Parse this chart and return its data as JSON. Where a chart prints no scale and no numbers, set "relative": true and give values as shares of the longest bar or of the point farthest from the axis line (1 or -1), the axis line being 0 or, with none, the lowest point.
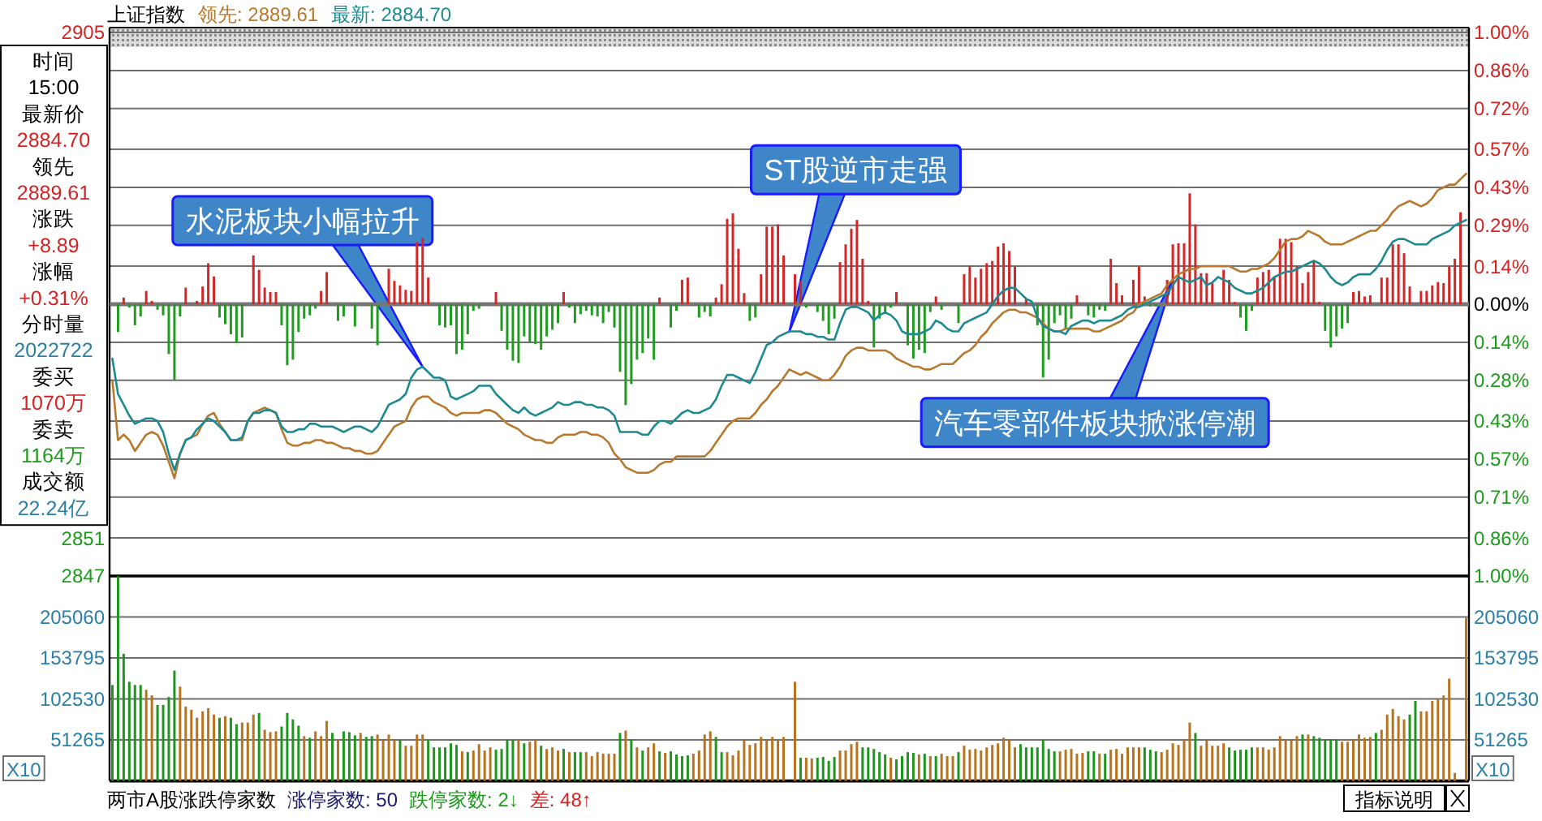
{
  "chart_data": [
    {
      "type": "line",
      "title": "上证指数",
      "grid": "y",
      "categories": [
        null,
        null,
        null,
        null,
        null,
        null,
        null,
        null,
        null,
        null,
        null,
        null,
        null,
        null,
        null,
        null,
        null,
        null,
        null,
        null,
        null,
        null,
        null,
        null,
        null,
        null,
        null,
        null,
        null,
        null,
        null,
        null,
        null,
        null,
        null,
        null,
        null,
        null,
        null,
        null,
        null,
        null,
        null,
        null,
        null,
        null,
        null,
        null,
        null,
        null,
        null,
        null,
        null,
        null,
        null,
        null,
        null,
        null,
        null,
        null,
        null,
        null,
        null,
        null,
        null,
        null,
        null,
        null,
        null,
        null,
        null,
        null,
        null,
        null,
        null,
        null,
        null,
        null,
        null,
        null,
        null,
        null,
        null,
        null,
        null,
        null,
        null,
        null,
        null,
        null,
        null,
        null,
        null,
        null,
        null,
        null,
        null,
        null,
        null,
        null,
        null,
        null,
        null,
        null,
        null,
        null,
        null,
        null,
        null,
        null,
        null,
        null,
        null,
        null,
        null,
        null,
        null,
        null,
        null,
        null,
        null,
        null,
        null,
        null,
        null,
        null,
        null,
        null,
        null,
        null,
        null,
        null,
        null,
        null,
        null,
        null,
        null,
        null,
        null,
        null,
        null,
        null,
        null,
        null,
        null,
        null,
        null,
        null,
        null,
        null,
        null,
        null,
        null,
        null,
        null,
        null,
        null,
        null,
        null,
        null,
        null,
        null,
        null,
        null,
        null,
        null,
        null,
        null,
        null,
        null,
        null,
        null,
        null,
        null,
        null,
        null,
        null,
        null,
        null,
        null,
        null,
        null,
        null,
        null,
        null,
        null,
        null,
        null,
        null,
        null,
        null,
        null,
        null,
        null,
        null,
        null,
        null,
        null,
        null,
        null,
        null,
        null,
        null,
        null,
        null,
        null,
        null,
        null,
        null,
        null,
        null,
        null,
        null,
        null,
        null,
        null,
        null,
        null,
        null,
        null,
        null,
        null,
        null,
        null,
        null,
        null,
        null,
        null,
        null,
        null,
        null,
        null,
        null,
        null,
        null,
        null,
        null,
        null,
        null,
        null,
        null
      ],
      "ylim": [
        -1,
        1
      ],
      "yticks": [
        {
          "value": 1,
          "label": "1.00%"
        },
        {
          "value": 0.86,
          "label": "0.86%"
        },
        {
          "value": 0.72,
          "label": "0.72%"
        },
        {
          "value": 0.57,
          "label": "0.57%"
        },
        {
          "value": 0.43,
          "label": "0.43%"
        },
        {
          "value": 0.29,
          "label": "0.29%"
        },
        {
          "value": 0.14,
          "label": "0.14%"
        },
        {
          "value": 0,
          "label": "0.00%"
        },
        {
          "value": -0.14,
          "label": "0.14%"
        },
        {
          "value": -0.28,
          "label": "0.28%"
        },
        {
          "value": -0.43,
          "label": "0.43%"
        },
        {
          "value": -0.57,
          "label": "0.57%"
        },
        {
          "value": -0.71,
          "label": "0.71%"
        },
        {
          "value": -0.86,
          "label": "0.86%"
        },
        {
          "value": -1,
          "label": "1.00%"
        }
      ],
      "y2lim": [
        2847,
        2905
      ],
      "y2ticks": [
        2905,
        2851,
        2847
      ],
      "series": [
        {
          "name": "领先: 2889.61",
          "color": "#b8792e",
          "values": [
            -0.28,
            -0.5,
            -0.48,
            -0.5,
            -0.54,
            -0.51,
            -0.48,
            -0.47,
            -0.48,
            -0.52,
            -0.58,
            -0.64,
            -0.55,
            -0.5,
            -0.49,
            -0.48,
            -0.44,
            -0.41,
            -0.4,
            -0.44,
            -0.47,
            -0.5,
            -0.5,
            -0.5,
            -0.43,
            -0.4,
            -0.39,
            -0.38,
            -0.39,
            -0.4,
            -0.46,
            -0.51,
            -0.52,
            -0.52,
            -0.51,
            -0.51,
            -0.5,
            -0.5,
            -0.51,
            -0.51,
            -0.52,
            -0.53,
            -0.53,
            -0.54,
            -0.54,
            -0.55,
            -0.55,
            -0.54,
            -0.51,
            -0.48,
            -0.45,
            -0.44,
            -0.43,
            -0.38,
            -0.35,
            -0.34,
            -0.34,
            -0.36,
            -0.37,
            -0.38,
            -0.4,
            -0.41,
            -0.4,
            -0.4,
            -0.4,
            -0.4,
            -0.39,
            -0.39,
            -0.4,
            -0.42,
            -0.44,
            -0.45,
            -0.46,
            -0.48,
            -0.49,
            -0.5,
            -0.5,
            -0.51,
            -0.51,
            -0.49,
            -0.48,
            -0.48,
            -0.48,
            -0.47,
            -0.47,
            -0.48,
            -0.48,
            -0.49,
            -0.51,
            -0.55,
            -0.57,
            -0.6,
            -0.61,
            -0.62,
            -0.62,
            -0.62,
            -0.61,
            -0.59,
            -0.58,
            -0.58,
            -0.56,
            -0.56,
            -0.56,
            -0.56,
            -0.56,
            -0.56,
            -0.54,
            -0.51,
            -0.48,
            -0.45,
            -0.43,
            -0.42,
            -0.42,
            -0.42,
            -0.4,
            -0.37,
            -0.35,
            -0.32,
            -0.3,
            -0.27,
            -0.24,
            -0.25,
            -0.26,
            -0.25,
            -0.26,
            -0.27,
            -0.28,
            -0.28,
            -0.26,
            -0.23,
            -0.19,
            -0.17,
            -0.16,
            -0.16,
            -0.17,
            -0.17,
            -0.17,
            -0.17,
            -0.18,
            -0.2,
            -0.21,
            -0.22,
            -0.23,
            -0.23,
            -0.24,
            -0.24,
            -0.23,
            -0.22,
            -0.22,
            -0.22,
            -0.2,
            -0.18,
            -0.17,
            -0.15,
            -0.12,
            -0.1,
            -0.07,
            -0.05,
            -0.03,
            -0.02,
            -0.02,
            -0.03,
            -0.03,
            -0.04,
            -0.05,
            -0.07,
            -0.09,
            -0.1,
            -0.1,
            -0.09,
            -0.09,
            -0.09,
            -0.09,
            -0.09,
            -0.1,
            -0.1,
            -0.09,
            -0.08,
            -0.07,
            -0.06,
            -0.04,
            -0.03,
            0.0,
            0.01,
            0.02,
            0.03,
            0.04,
            0.07,
            0.09,
            0.11,
            0.12,
            0.13,
            0.13,
            0.14,
            0.14,
            0.14,
            0.14,
            0.14,
            0.14,
            0.13,
            0.12,
            0.12,
            0.13,
            0.13,
            0.14,
            0.15,
            0.17,
            0.2,
            0.23,
            0.24,
            0.24,
            0.25,
            0.27,
            0.26,
            0.25,
            0.23,
            0.22,
            0.22,
            0.22,
            0.23,
            0.24,
            0.25,
            0.26,
            0.27,
            0.27,
            0.29,
            0.31,
            0.34,
            0.36,
            0.37,
            0.38,
            0.37,
            0.36,
            0.37,
            0.39,
            0.42,
            0.43,
            0.44,
            0.44,
            0.46,
            0.48
          ]
        },
        {
          "name": "最新: 2884.70",
          "color": "#1d8a92",
          "values": [
            -0.2,
            -0.33,
            -0.37,
            -0.41,
            -0.44,
            -0.43,
            -0.42,
            -0.42,
            -0.43,
            -0.47,
            -0.55,
            -0.61,
            -0.55,
            -0.5,
            -0.49,
            -0.46,
            -0.44,
            -0.42,
            -0.43,
            -0.45,
            -0.47,
            -0.5,
            -0.5,
            -0.49,
            -0.43,
            -0.4,
            -0.4,
            -0.39,
            -0.39,
            -0.4,
            -0.45,
            -0.47,
            -0.47,
            -0.46,
            -0.46,
            -0.44,
            -0.44,
            -0.45,
            -0.45,
            -0.45,
            -0.46,
            -0.47,
            -0.46,
            -0.45,
            -0.45,
            -0.46,
            -0.47,
            -0.45,
            -0.41,
            -0.37,
            -0.36,
            -0.35,
            -0.33,
            -0.27,
            -0.24,
            -0.23,
            -0.25,
            -0.27,
            -0.27,
            -0.28,
            -0.34,
            -0.35,
            -0.34,
            -0.33,
            -0.32,
            -0.3,
            -0.3,
            -0.3,
            -0.33,
            -0.35,
            -0.37,
            -0.39,
            -0.4,
            -0.38,
            -0.4,
            -0.41,
            -0.4,
            -0.39,
            -0.38,
            -0.36,
            -0.37,
            -0.37,
            -0.36,
            -0.36,
            -0.37,
            -0.37,
            -0.38,
            -0.38,
            -0.39,
            -0.41,
            -0.47,
            -0.47,
            -0.47,
            -0.47,
            -0.48,
            -0.48,
            -0.45,
            -0.43,
            -0.43,
            -0.44,
            -0.42,
            -0.4,
            -0.39,
            -0.4,
            -0.4,
            -0.39,
            -0.38,
            -0.35,
            -0.3,
            -0.26,
            -0.26,
            -0.27,
            -0.28,
            -0.29,
            -0.25,
            -0.2,
            -0.15,
            -0.14,
            -0.12,
            -0.11,
            -0.1,
            -0.1,
            -0.1,
            -0.11,
            -0.11,
            -0.12,
            -0.12,
            -0.13,
            -0.13,
            -0.07,
            -0.02,
            -0.01,
            -0.01,
            -0.02,
            -0.03,
            -0.06,
            -0.04,
            -0.03,
            -0.04,
            -0.06,
            -0.1,
            -0.11,
            -0.11,
            -0.11,
            -0.1,
            -0.09,
            -0.06,
            -0.07,
            -0.09,
            -0.1,
            -0.1,
            -0.07,
            -0.06,
            -0.05,
            -0.04,
            -0.03,
            0.0,
            0.03,
            0.05,
            0.06,
            0.06,
            0.04,
            0.02,
            0.01,
            -0.05,
            -0.08,
            -0.09,
            -0.1,
            -0.1,
            -0.11,
            -0.08,
            -0.07,
            -0.06,
            -0.06,
            -0.07,
            -0.06,
            -0.06,
            -0.06,
            -0.05,
            -0.04,
            -0.02,
            -0.01,
            -0.01,
            0.0,
            0.01,
            0.02,
            0.03,
            0.04,
            0.07,
            0.1,
            0.09,
            0.08,
            0.09,
            0.1,
            0.07,
            0.08,
            0.1,
            0.09,
            0.08,
            0.06,
            0.05,
            0.04,
            0.04,
            0.05,
            0.06,
            0.08,
            0.1,
            0.11,
            0.12,
            0.12,
            0.13,
            0.14,
            0.15,
            0.16,
            0.15,
            0.13,
            0.1,
            0.08,
            0.07,
            0.08,
            0.1,
            0.11,
            0.11,
            0.11,
            0.13,
            0.16,
            0.2,
            0.23,
            0.24,
            0.24,
            0.23,
            0.22,
            0.22,
            0.22,
            0.24,
            0.25,
            0.26,
            0.27,
            0.29,
            0.3,
            0.31
          ]
        }
      ],
      "annotations": [
        "水泥板块小幅拉升",
        "ST股逆市走强",
        "汽车零部件板块掀涨停潮",
        "时间",
        "15:00",
        "最新价",
        "2884.70",
        "领先",
        "2889.61",
        "涨跌",
        "+8.89",
        "涨幅",
        "+0.31%",
        "分时量",
        "2022722",
        "委买",
        "1070万",
        "委卖",
        "1164万",
        "成交额",
        "22.24亿"
      ]
    },
    {
      "type": "bar",
      "relative": true,
      "categories": [
        null,
        null,
        null,
        null,
        null,
        null,
        null,
        null,
        null,
        null,
        null,
        null,
        null,
        null,
        null,
        null,
        null,
        null,
        null,
        null,
        null,
        null,
        null,
        null,
        null,
        null,
        null,
        null,
        null,
        null,
        null,
        null,
        null,
        null,
        null,
        null,
        null,
        null,
        null,
        null,
        null,
        null,
        null,
        null,
        null,
        null,
        null,
        null,
        null,
        null,
        null,
        null,
        null,
        null,
        null,
        null,
        null,
        null,
        null,
        null,
        null,
        null,
        null,
        null,
        null,
        null,
        null,
        null,
        null,
        null,
        null,
        null,
        null,
        null,
        null,
        null,
        null,
        null,
        null,
        null,
        null,
        null,
        null,
        null,
        null,
        null,
        null,
        null,
        null,
        null,
        null,
        null,
        null,
        null,
        null,
        null,
        null,
        null,
        null,
        null,
        null,
        null,
        null,
        null,
        null,
        null,
        null,
        null,
        null,
        null,
        null,
        null,
        null,
        null,
        null,
        null,
        null,
        null,
        null,
        null,
        null,
        null,
        null,
        null,
        null,
        null,
        null,
        null,
        null,
        null,
        null,
        null,
        null,
        null,
        null,
        null,
        null,
        null,
        null,
        null,
        null,
        null,
        null,
        null,
        null,
        null,
        null,
        null,
        null,
        null,
        null,
        null,
        null,
        null,
        null,
        null,
        null,
        null,
        null,
        null,
        null,
        null,
        null,
        null,
        null,
        null,
        null,
        null,
        null,
        null,
        null,
        null,
        null,
        null,
        null,
        null,
        null,
        null,
        null,
        null,
        null,
        null,
        null,
        null,
        null,
        null,
        null,
        null,
        null,
        null,
        null,
        null,
        null,
        null,
        null,
        null,
        null,
        null,
        null,
        null,
        null,
        null,
        null,
        null,
        null,
        null,
        null,
        null,
        null,
        null,
        null,
        null,
        null,
        null,
        null,
        null,
        null,
        null,
        null,
        null,
        null,
        null,
        null,
        null,
        null,
        null,
        null,
        null,
        null,
        null,
        null,
        null,
        null,
        null,
        null,
        null,
        null,
        null,
        null,
        null,
        null
      ],
      "series": [
        {
          "color": "#d42626",
          "values": [
            null,
            null,
            0.06,
            null,
            null,
            null,
            0.12,
            0.03,
            null,
            null,
            null,
            null,
            null,
            0.15,
            null,
            0.03,
            0.16,
            0.37,
            0.25,
            null,
            null,
            null,
            null,
            null,
            null,
            0.44,
            0.31,
            0.15,
            0.11,
            0.11,
            null,
            null,
            null,
            null,
            null,
            null,
            null,
            0.12,
            0.29,
            null,
            null,
            null,
            null,
            null,
            null,
            null,
            null,
            null,
            null,
            0.32,
            0.21,
            0.17,
            0.13,
            0.12,
            0.56,
            0.6,
            0.24,
            null,
            null,
            null,
            null,
            null,
            null,
            null,
            null,
            null,
            null,
            null,
            0.11,
            null,
            null,
            null,
            null,
            null,
            null,
            null,
            null,
            null,
            null,
            null,
            0.11,
            null,
            null,
            null,
            null,
            null,
            null,
            null,
            null,
            null,
            null,
            null,
            null,
            null,
            null,
            null,
            null,
            0.06,
            null,
            null,
            null,
            0.22,
            0.24,
            null,
            null,
            null,
            null,
            0.06,
            0.18,
            0.77,
            0.82,
            0.5,
            0.1,
            null,
            null,
            0.27,
            0.7,
            0.7,
            0.72,
            0.44,
            null,
            0.27,
            0.21,
            null,
            null,
            null,
            null,
            null,
            null,
            0.38,
            0.54,
            0.68,
            0.76,
            0.41,
            0.03,
            null,
            null,
            null,
            null,
            0.11,
            null,
            null,
            null,
            null,
            null,
            null,
            0.07,
            null,
            null,
            null,
            null,
            0.27,
            0.34,
            0.24,
            0.32,
            0.37,
            0.39,
            0.52,
            0.55,
            0.48,
            0.34,
            null,
            0.05,
            null,
            null,
            null,
            null,
            null,
            null,
            null,
            null,
            0.08,
            null,
            null,
            null,
            null,
            null,
            0.41,
            0.19,
            0.08,
            null,
            0.22,
            0.34,
            0.07,
            null,
            null,
            null,
            0.22,
            0.54,
            0.55,
            0.55,
            1,
            0.72,
            0.28,
            0.28,
            0.19,
            null,
            0.31,
            0.22,
            0.02,
            null,
            null,
            null,
            0.24,
            0.29,
            0.31,
            0.25,
            0.59,
            0.59,
            0.56,
            0.34,
            0.19,
            0.29,
            0.39,
            0.02,
            null,
            null,
            null,
            null,
            null,
            0.11,
            0.12,
            0.07,
            0.08,
            null,
            0.24,
            0.24,
            0.54,
            0.54,
            0.46,
            0.16,
            null,
            0.12,
            0.12,
            0.17,
            0.2,
            0.19,
            0.34,
            0.41,
            0.83,
            null
          ]
        },
        {
          "color": "#1f9c1f",
          "values": [
            null,
            -0.25,
            null,
            -0.03,
            -0.19,
            -0.11,
            null,
            null,
            -0.05,
            -0.1,
            -0.45,
            -0.68,
            -0.11,
            null,
            null,
            null,
            null,
            null,
            null,
            -0.12,
            -0.18,
            -0.27,
            -0.35,
            -0.3,
            null,
            null,
            null,
            null,
            null,
            null,
            -0.19,
            -0.55,
            -0.5,
            -0.25,
            -0.13,
            -0.1,
            -0.04,
            null,
            null,
            null,
            -0.15,
            -0.11,
            null,
            -0.2,
            null,
            null,
            -0.22,
            -0.37,
            null,
            null,
            null,
            null,
            null,
            null,
            null,
            null,
            null,
            null,
            -0.19,
            -0.21,
            -0.19,
            -0.45,
            -0.41,
            -0.27,
            -0.06,
            -0.04,
            null,
            null,
            null,
            -0.24,
            -0.41,
            -0.51,
            -0.53,
            -0.29,
            -0.34,
            -0.36,
            -0.41,
            -0.29,
            -0.23,
            -0.17,
            null,
            -0.03,
            -0.17,
            -0.09,
            -0.06,
            -0.1,
            -0.11,
            -0.17,
            -0.07,
            -0.21,
            -0.61,
            -0.91,
            -0.72,
            -0.5,
            -0.44,
            -0.31,
            -0.5,
            null,
            null,
            -0.21,
            -0.06,
            null,
            null,
            null,
            -0.12,
            -0.07,
            -0.11,
            null,
            null,
            null,
            null,
            null,
            null,
            -0.15,
            -0.12,
            null,
            null,
            null,
            null,
            null,
            null,
            null,
            null,
            -0.03,
            null,
            -0.07,
            -0.15,
            -0.27,
            -0.13,
            null,
            null,
            null,
            null,
            null,
            null,
            -0.39,
            -0.13,
            -0.08,
            -0.03,
            null,
            null,
            -0.37,
            -0.49,
            -0.41,
            -0.44,
            -0.07,
            null,
            -0.05,
            null,
            null,
            -0.17,
            null,
            null,
            null,
            null,
            null,
            null,
            null,
            null,
            null,
            null,
            null,
            null,
            null,
            -0.19,
            -0.66,
            -0.5,
            -0.17,
            -0.1,
            -0.22,
            -0.13,
            null,
            null,
            -0.1,
            -0.12,
            -0.05,
            -0.06,
            null,
            null,
            null,
            null,
            null,
            null,
            null,
            -0.02,
            -0.02,
            null,
            null,
            null,
            null,
            null,
            null,
            null,
            null,
            null,
            null,
            null,
            null,
            null,
            null,
            -0.12,
            -0.24,
            -0.06,
            null,
            null,
            null,
            null,
            null,
            null,
            null,
            null,
            null,
            null,
            null,
            null,
            -0.24,
            -0.39,
            -0.29,
            -0.22,
            -0.17,
            null,
            null,
            null,
            null,
            null,
            null,
            null,
            null,
            null,
            null,
            null,
            null,
            null,
            null,
            null,
            null,
            null,
            null,
            null,
            null,
            null
          ]
        }
      ]
    },
    {
      "type": "bar",
      "grid": "y",
      "categories": [
        null,
        null,
        null,
        null,
        null,
        null,
        null,
        null,
        null,
        null,
        null,
        null,
        null,
        null,
        null,
        null,
        null,
        null,
        null,
        null,
        null,
        null,
        null,
        null,
        null,
        null,
        null,
        null,
        null,
        null,
        null,
        null,
        null,
        null,
        null,
        null,
        null,
        null,
        null,
        null,
        null,
        null,
        null,
        null,
        null,
        null,
        null,
        null,
        null,
        null,
        null,
        null,
        null,
        null,
        null,
        null,
        null,
        null,
        null,
        null,
        null,
        null,
        null,
        null,
        null,
        null,
        null,
        null,
        null,
        null,
        null,
        null,
        null,
        null,
        null,
        null,
        null,
        null,
        null,
        null,
        null,
        null,
        null,
        null,
        null,
        null,
        null,
        null,
        null,
        null,
        null,
        null,
        null,
        null,
        null,
        null,
        null,
        null,
        null,
        null,
        null,
        null,
        null,
        null,
        null,
        null,
        null,
        null,
        null,
        null,
        null,
        null,
        null,
        null,
        null,
        null,
        null,
        null,
        null,
        null,
        null,
        null,
        null,
        null,
        null,
        null,
        null,
        null,
        null,
        null,
        null,
        null,
        null,
        null,
        null,
        null,
        null,
        null,
        null,
        null,
        null,
        null,
        null,
        null,
        null,
        null,
        null,
        null,
        null,
        null,
        null,
        null,
        null,
        null,
        null,
        null,
        null,
        null,
        null,
        null,
        null,
        null,
        null,
        null,
        null,
        null,
        null,
        null,
        null,
        null,
        null,
        null,
        null,
        null,
        null,
        null,
        null,
        null,
        null,
        null,
        null,
        null,
        null,
        null,
        null,
        null,
        null,
        null,
        null,
        null,
        null,
        null,
        null,
        null,
        null,
        null,
        null,
        null,
        null,
        null,
        null,
        null,
        null,
        null,
        null,
        null,
        null,
        null,
        null,
        null,
        null,
        null,
        null,
        null,
        null,
        null,
        null,
        null,
        null,
        null,
        null,
        null,
        null,
        null,
        null,
        null,
        null,
        null,
        null,
        null,
        null,
        null,
        null,
        null,
        null,
        null,
        null,
        null,
        null,
        null,
        null
      ],
      "ylim": [
        0,
        256325
      ],
      "yticks": [
        51265,
        102530,
        153795,
        205060
      ],
      "y2lim": [
        0,
        256325
      ],
      "y2ticks": [
        51265,
        102530,
        153795,
        205060
      ],
      "series": [
        {
          "color": "#b8731e",
          "values": [
            null,
            null,
            null,
            null,
            null,
            null,
            114000,
            107000,
            null,
            null,
            null,
            null,
            118000,
            93000,
            89000,
            79000,
            87000,
            91000,
            83000,
            null,
            81000,
            null,
            null,
            73000,
            73000,
            83000,
            null,
            64000,
            61000,
            62000,
            null,
            null,
            null,
            null,
            56000,
            null,
            62000,
            56000,
            75000,
            null,
            52000,
            null,
            null,
            null,
            60000,
            null,
            null,
            58000,
            51000,
            58000,
            51000,
            null,
            44000,
            44000,
            58000,
            58000,
            null,
            null,
            null,
            null,
            null,
            null,
            37000,
            null,
            38000,
            46000,
            38000,
            42000,
            null,
            null,
            null,
            null,
            52000,
            null,
            49000,
            51000,
            null,
            40000,
            42000,
            38000,
            null,
            36000,
            null,
            null,
            36000,
            31000,
            36000,
            34000,
            34000,
            34000,
            null,
            63000,
            null,
            42000,
            null,
            42000,
            47000,
            null,
            35000,
            null,
            null,
            null,
            null,
            34000,
            38000,
            58000,
            62000,
            null,
            null,
            36000,
            32000,
            38000,
            51000,
            45000,
            47000,
            55000,
            51000,
            55000,
            51000,
            55000,
            null,
            124000,
            null,
            29000,
            28000,
            null,
            null,
            null,
            null,
            38000,
            38000,
            46000,
            49000,
            null,
            null,
            null,
            null,
            null,
            29000,
            null,
            null,
            null,
            null,
            33000,
            null,
            31000,
            null,
            34000,
            31000,
            31000,
            null,
            44000,
            39000,
            40000,
            38000,
            42000,
            45000,
            47000,
            54000,
            51000,
            42000,
            null,
            null,
            null,
            null,
            null,
            null,
            null,
            37000,
            39000,
            40000,
            34000,
            35000,
            null,
            null,
            34000,
            null,
            39000,
            40000,
            34000,
            42000,
            42000,
            42000,
            null,
            null,
            null,
            36000,
            39000,
            47000,
            45000,
            51000,
            73000,
            null,
            44000,
            51000,
            44000,
            44000,
            47000,
            null,
            null,
            null,
            null,
            null,
            42000,
            42000,
            39000,
            42000,
            56000,
            51000,
            51000,
            56000,
            null,
            58000,
            null,
            null,
            null,
            null,
            null,
            49000,
            49000,
            51000,
            58000,
            54000,
            55000,
            null,
            64000,
            83000,
            90000,
            81000,
            77000,
            null,
            null,
            87000,
            87000,
            100000,
            102000,
            107000,
            128000,
            10000,
            null,
            204000
          ]
        },
        {
          "color": "#1e961e",
          "values": [
            120000,
            256000,
            159000,
            124000,
            120000,
            120000,
            null,
            null,
            95000,
            95000,
            105000,
            138000,
            null,
            null,
            null,
            null,
            null,
            null,
            null,
            79000,
            null,
            79000,
            71000,
            null,
            null,
            null,
            85000,
            null,
            null,
            null,
            68000,
            85000,
            77000,
            69000,
            null,
            54000,
            null,
            null,
            null,
            60000,
            null,
            62000,
            61000,
            57000,
            null,
            55000,
            56000,
            null,
            null,
            null,
            null,
            51000,
            null,
            null,
            null,
            null,
            51000,
            42000,
            42000,
            42000,
            47000,
            45000,
            null,
            36000,
            null,
            null,
            null,
            null,
            39000,
            40000,
            51000,
            51000,
            null,
            47000,
            null,
            null,
            44000,
            null,
            null,
            null,
            40000,
            null,
            36000,
            36000,
            null,
            null,
            null,
            null,
            null,
            null,
            60000,
            null,
            52000,
            null,
            38000,
            null,
            null,
            37000,
            null,
            37000,
            33000,
            31000,
            32000,
            null,
            null,
            null,
            null,
            55000,
            36000,
            null,
            null,
            null,
            null,
            null,
            null,
            null,
            null,
            null,
            null,
            null,
            null,
            null,
            29000,
            null,
            null,
            29000,
            30000,
            25000,
            30000,
            null,
            null,
            null,
            null,
            42000,
            42000,
            40000,
            36000,
            33000,
            null,
            27000,
            31000,
            36000,
            35000,
            null,
            34000,
            null,
            31000,
            null,
            null,
            null,
            36000,
            null,
            null,
            null,
            null,
            null,
            null,
            null,
            null,
            null,
            null,
            46000,
            42000,
            42000,
            42000,
            51000,
            40000,
            37000,
            null,
            null,
            null,
            null,
            null,
            37000,
            37000,
            null,
            34000,
            null,
            null,
            null,
            null,
            null,
            null,
            42000,
            39000,
            37000,
            null,
            null,
            null,
            null,
            null,
            null,
            60000,
            null,
            null,
            null,
            null,
            null,
            42000,
            38000,
            39000,
            39000,
            42000,
            null,
            null,
            null,
            null,
            null,
            null,
            null,
            null,
            58000,
            null,
            56000,
            54000,
            52000,
            52000,
            52000,
            null,
            null,
            null,
            null,
            null,
            null,
            60000,
            null,
            null,
            null,
            null,
            null,
            83000,
            100000,
            null,
            null,
            null,
            null,
            null,
            null,
            null,
            null,
            null
          ]
        }
      ],
      "annotations": [
        "X10",
        "X10",
        "两市A股涨跌停家数",
        "涨停家数: 50",
        "跌停家数: 2↓",
        "差: 48↑",
        "指标说明"
      ]
    }
  ]
}
